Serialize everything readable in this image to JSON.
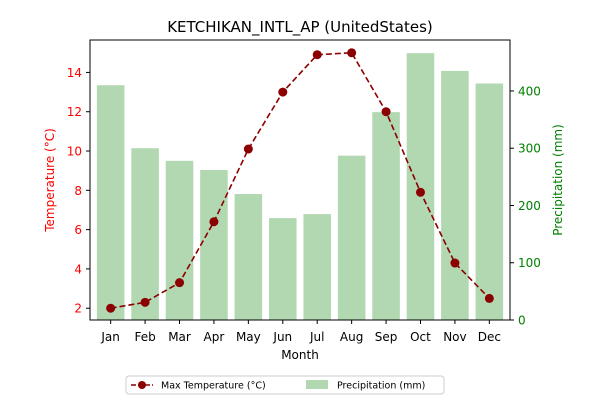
{
  "chart_data": {
    "type": "bar",
    "title": "KETCHIKAN_INTL_AP (UnitedStates)",
    "xlabel": "Month",
    "categories": [
      "Jan",
      "Feb",
      "Mar",
      "Apr",
      "May",
      "Jun",
      "Jul",
      "Aug",
      "Sep",
      "Oct",
      "Nov",
      "Dec"
    ],
    "series": [
      {
        "name": "Max Temperature (°C)",
        "type": "line",
        "axis": "left",
        "color": "#8b0000",
        "values": [
          2.0,
          2.3,
          3.3,
          6.4,
          10.1,
          13.0,
          14.9,
          15.0,
          12.0,
          7.9,
          4.3,
          2.5
        ]
      },
      {
        "name": "Precipitation (mm)",
        "type": "bar",
        "axis": "right",
        "color": "#b2d8b2",
        "values": [
          410,
          300,
          278,
          262,
          220,
          178,
          185,
          287,
          363,
          466,
          435,
          413
        ]
      }
    ],
    "y_left": {
      "label": "Temperature (°C)",
      "color": "#ff0000",
      "ylim": [
        1.4,
        15.65
      ],
      "ticks": [
        2,
        4,
        6,
        8,
        10,
        12,
        14
      ]
    },
    "y_right": {
      "label": "Precipitation (mm)",
      "color": "#008000",
      "ylim": [
        0,
        489
      ],
      "ticks": [
        0,
        100,
        200,
        300,
        400
      ]
    },
    "legend": {
      "placement": "bottom-center",
      "entries": [
        "Max Temperature (°C)",
        "Precipitation (mm)"
      ]
    }
  }
}
